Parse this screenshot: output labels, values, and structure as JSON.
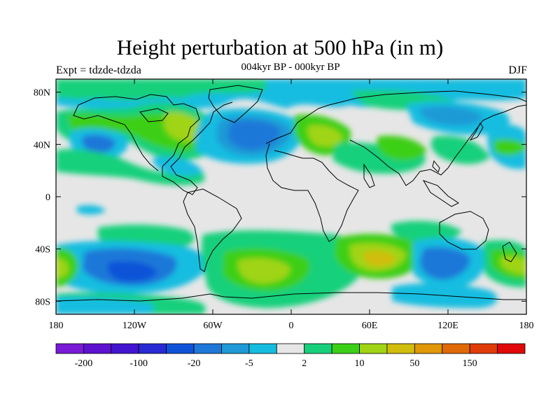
{
  "title": "Height perturbation at 500 hPa (in m)",
  "subtitle": "004kyr BP - 000kyr BP",
  "experiment": "Expt = tdzde-tdzda",
  "season": "DJF",
  "map": {
    "projection": "cylindrical equidistant",
    "lon_range": [
      -180,
      180
    ],
    "lat_range": [
      -90,
      90
    ],
    "x_ticks": [
      "180",
      "120W",
      "60W",
      "0",
      "60E",
      "120E",
      "180"
    ],
    "y_ticks": [
      "80N",
      "40N",
      "0",
      "40S",
      "80S"
    ]
  },
  "colorbar": {
    "colors": [
      "#7a1ad6",
      "#5d12cf",
      "#4314cf",
      "#2a2ad4",
      "#0f52d8",
      "#1f78d8",
      "#1f9ad6",
      "#14bde0",
      "#e6e6e6",
      "#18d07c",
      "#3ccf18",
      "#a0d414",
      "#d1bd0c",
      "#e09808",
      "#e06a08",
      "#e03c08",
      "#e00808"
    ],
    "labels": [
      "-200",
      "-100",
      "-20",
      "-5",
      "2",
      "10",
      "50",
      "150"
    ]
  }
}
